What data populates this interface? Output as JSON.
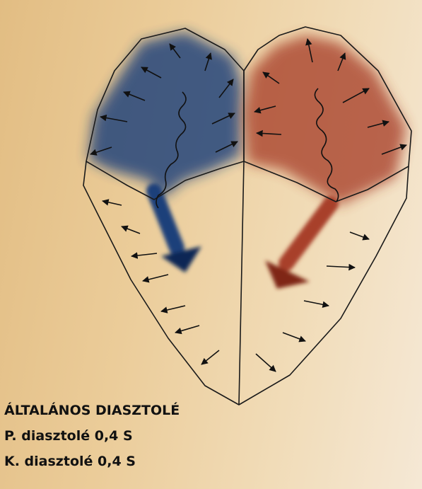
{
  "caption": {
    "title": "ÁLTALÁNOS DIASZTOLÉ",
    "line1": "P. diasztolé 0,4 S",
    "line2": "K. diasztolé 0,4 S"
  },
  "colors": {
    "venous_blood": "#1e3f7a",
    "arterial_blood": "#a8402a",
    "outline": "#1a1a1a"
  },
  "icons": {
    "left_atrium_flow": "arrow-down-right",
    "right_atrium_flow": "arrow-down-left",
    "wall_motion": "small-arrows-outward"
  }
}
